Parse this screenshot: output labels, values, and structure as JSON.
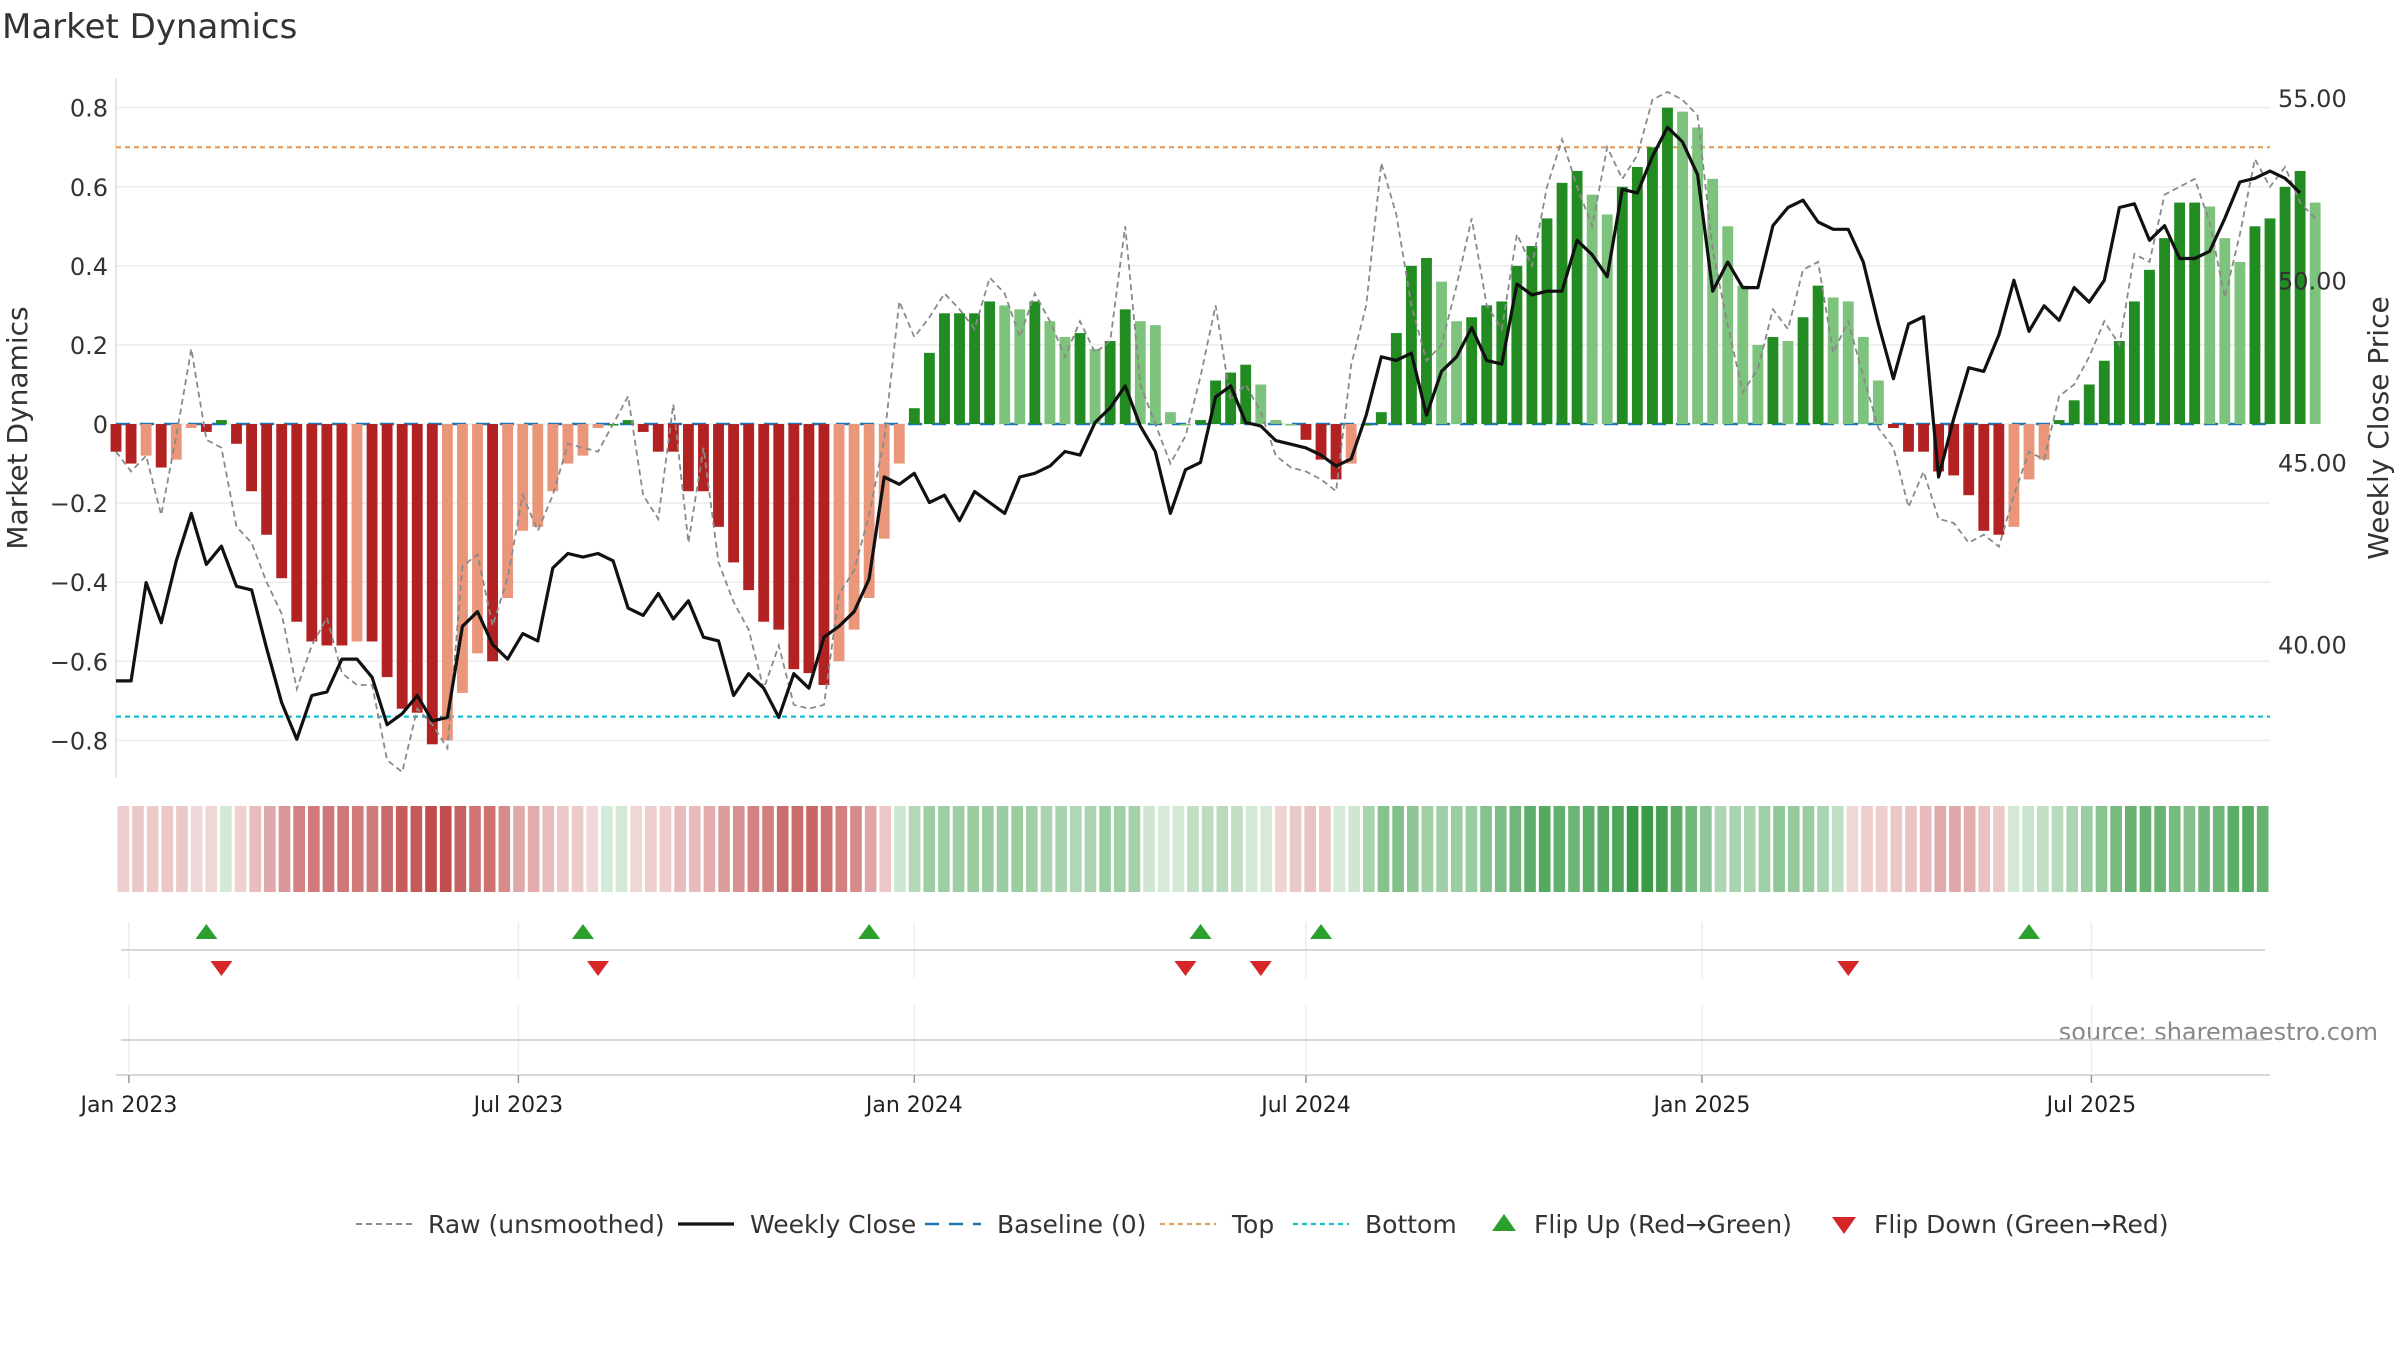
{
  "chart_data": {
    "type": "bar",
    "title": "Market Dynamics",
    "ylabel": "Market Dynamics",
    "y2label": "Weekly Close Price",
    "source_text": "source: sharemaestro.com",
    "ylim": [
      -0.88,
      0.87
    ],
    "y2lim": [
      36.5,
      55.5
    ],
    "y_ticks": [
      0.8,
      0.6,
      0.4,
      0.2,
      0,
      -0.2,
      -0.4,
      -0.6,
      -0.8
    ],
    "y_tick_labels": [
      "0.8",
      "0.6",
      "0.4",
      "0.2",
      "0",
      "−0.2",
      "−0.4",
      "−0.6",
      "−0.8"
    ],
    "y2_ticks": [
      55,
      50,
      45,
      40
    ],
    "y2_tick_labels": [
      "55.00",
      "50.00",
      "45.00",
      "40.00"
    ],
    "x_start": "2022-12-26",
    "x_end": "2025-09-22",
    "x_ticks": [
      "2023-01-01",
      "2023-07-01",
      "2024-01-01",
      "2024-07-01",
      "2025-01-01",
      "2025-07-01"
    ],
    "x_tick_labels": [
      "Jan 2023",
      "Jul 2023",
      "Jan 2024",
      "Jul 2024",
      "Jan 2025",
      "Jul 2025"
    ],
    "top_level": 0.7,
    "bottom_level": -0.74,
    "grid": true,
    "legend_position": "bottom",
    "colors": {
      "red_strong": "#b22222",
      "red_light": "#e9967a",
      "green_strong": "#228b22",
      "green_light": "#7dc27d",
      "raw": "#8a8a8a",
      "close": "#111111",
      "baseline": "#1f77b4",
      "top": "#e0a060",
      "bottom": "#17becf",
      "flip_up": "#2ca02c",
      "flip_down": "#d62728"
    },
    "legend": [
      {
        "key": "raw",
        "label": "Raw (unsmoothed)"
      },
      {
        "key": "close",
        "label": "Weekly Close"
      },
      {
        "key": "baseline",
        "label": "Baseline (0)"
      },
      {
        "key": "top",
        "label": "Top"
      },
      {
        "key": "bottom",
        "label": "Bottom"
      },
      {
        "key": "flip_up",
        "label": "Flip Up (Red→Green)"
      },
      {
        "key": "flip_down",
        "label": "Flip Down (Green→Red)"
      }
    ],
    "dynamics": [
      -0.07,
      -0.1,
      -0.08,
      -0.11,
      -0.09,
      -0.01,
      -0.02,
      0.01,
      -0.05,
      -0.17,
      -0.28,
      -0.39,
      -0.5,
      -0.55,
      -0.56,
      -0.56,
      -0.55,
      -0.55,
      -0.64,
      -0.72,
      -0.73,
      -0.81,
      -0.8,
      -0.68,
      -0.58,
      -0.6,
      -0.44,
      -0.27,
      -0.26,
      -0.17,
      -0.1,
      -0.08,
      -0.01,
      0.0,
      0.01,
      -0.02,
      -0.07,
      -0.07,
      -0.17,
      -0.17,
      -0.26,
      -0.35,
      -0.42,
      -0.5,
      -0.52,
      -0.62,
      -0.63,
      -0.66,
      -0.6,
      -0.52,
      -0.44,
      -0.29,
      -0.1,
      0.04,
      0.18,
      0.28,
      0.28,
      0.28,
      0.31,
      0.3,
      0.29,
      0.31,
      0.26,
      0.22,
      0.23,
      0.19,
      0.21,
      0.29,
      0.26,
      0.25,
      0.03,
      0.0,
      0.01,
      0.11,
      0.13,
      0.15,
      0.1,
      0.01,
      0.0,
      -0.04,
      -0.09,
      -0.14,
      -0.1,
      0.0,
      0.03,
      0.23,
      0.4,
      0.42,
      0.36,
      0.26,
      0.27,
      0.3,
      0.31,
      0.4,
      0.45,
      0.52,
      0.61,
      0.64,
      0.58,
      0.53,
      0.6,
      0.65,
      0.7,
      0.8,
      0.79,
      0.75,
      0.62,
      0.5,
      0.35,
      0.2,
      0.22,
      0.21,
      0.27,
      0.35,
      0.32,
      0.31,
      0.22,
      0.11,
      -0.01,
      -0.07,
      -0.07,
      -0.12,
      -0.13,
      -0.18,
      -0.27,
      -0.28,
      -0.26,
      -0.14,
      -0.09,
      0.01,
      0.06,
      0.1,
      0.16,
      0.21,
      0.31,
      0.39,
      0.47,
      0.56,
      0.56,
      0.55,
      0.47,
      0.41,
      0.5,
      0.52,
      0.6,
      0.64,
      0.56
    ],
    "raw": [
      -0.07,
      -0.12,
      -0.08,
      -0.23,
      -0.03,
      0.19,
      -0.04,
      -0.06,
      -0.26,
      -0.3,
      -0.4,
      -0.48,
      -0.67,
      -0.56,
      -0.49,
      -0.63,
      -0.66,
      -0.66,
      -0.85,
      -0.88,
      -0.72,
      -0.76,
      -0.82,
      -0.36,
      -0.33,
      -0.51,
      -0.39,
      -0.18,
      -0.27,
      -0.18,
      -0.05,
      -0.06,
      -0.07,
      0.0,
      0.07,
      -0.18,
      -0.24,
      0.05,
      -0.3,
      -0.06,
      -0.35,
      -0.45,
      -0.52,
      -0.67,
      -0.56,
      -0.71,
      -0.72,
      -0.71,
      -0.43,
      -0.37,
      -0.23,
      -0.04,
      0.31,
      0.22,
      0.27,
      0.33,
      0.29,
      0.24,
      0.37,
      0.33,
      0.22,
      0.33,
      0.26,
      0.17,
      0.26,
      0.18,
      0.21,
      0.5,
      0.1,
      0.0,
      -0.1,
      -0.03,
      0.12,
      0.3,
      0.06,
      0.1,
      0.03,
      -0.08,
      -0.11,
      -0.12,
      -0.14,
      -0.17,
      0.15,
      0.3,
      0.66,
      0.53,
      0.3,
      0.16,
      0.2,
      0.35,
      0.52,
      0.3,
      0.24,
      0.48,
      0.4,
      0.6,
      0.72,
      0.6,
      0.5,
      0.7,
      0.62,
      0.68,
      0.82,
      0.84,
      0.82,
      0.78,
      0.44,
      0.25,
      0.08,
      0.14,
      0.29,
      0.24,
      0.39,
      0.41,
      0.18,
      0.26,
      0.12,
      -0.01,
      -0.06,
      -0.21,
      -0.12,
      -0.24,
      -0.25,
      -0.3,
      -0.28,
      -0.31,
      -0.18,
      -0.07,
      -0.09,
      0.07,
      0.1,
      0.17,
      0.26,
      0.2,
      0.43,
      0.41,
      0.58,
      0.6,
      0.62,
      0.51,
      0.32,
      0.48,
      0.67,
      0.6,
      0.65,
      0.56,
      0.52
    ],
    "close": [
      39.0,
      39.0,
      41.7,
      40.6,
      42.3,
      43.6,
      42.2,
      42.7,
      41.6,
      41.5,
      39.9,
      38.4,
      37.4,
      38.6,
      38.7,
      39.6,
      39.6,
      39.1,
      37.8,
      38.1,
      38.6,
      37.9,
      38.0,
      40.5,
      40.9,
      40.0,
      39.6,
      40.3,
      40.1,
      42.1,
      42.5,
      42.4,
      42.5,
      42.3,
      41.0,
      40.8,
      41.4,
      40.7,
      41.2,
      40.2,
      40.1,
      38.6,
      39.2,
      38.8,
      38.0,
      39.2,
      38.8,
      40.2,
      40.5,
      40.9,
      41.8,
      44.6,
      44.4,
      44.7,
      43.9,
      44.1,
      43.4,
      44.2,
      43.9,
      43.6,
      44.6,
      44.7,
      44.9,
      45.3,
      45.2,
      46.1,
      46.5,
      47.1,
      46.0,
      45.3,
      43.6,
      44.8,
      45.0,
      46.8,
      47.1,
      46.1,
      46.0,
      45.6,
      45.5,
      45.4,
      45.2,
      44.9,
      45.1,
      46.3,
      47.9,
      47.8,
      48.0,
      46.3,
      47.5,
      47.9,
      48.7,
      47.8,
      47.7,
      49.9,
      49.6,
      49.7,
      49.7,
      51.1,
      50.7,
      50.1,
      52.5,
      52.4,
      53.4,
      54.2,
      53.8,
      52.9,
      49.7,
      50.5,
      49.8,
      49.8,
      51.5,
      52.0,
      52.2,
      51.6,
      51.4,
      51.4,
      50.5,
      48.8,
      47.3,
      48.8,
      49.0,
      44.6,
      46.2,
      47.6,
      47.5,
      48.5,
      50.0,
      48.6,
      49.3,
      48.9,
      49.8,
      49.4,
      50.0,
      52.0,
      52.1,
      51.1,
      51.5,
      50.6,
      50.6,
      50.8,
      51.7,
      52.7,
      52.8,
      53.0,
      52.8,
      52.4
    ],
    "flip_up": [
      "2023-02-06",
      "2023-07-31",
      "2023-12-11",
      "2024-05-13",
      "2024-07-08",
      "2025-06-02"
    ],
    "flip_down": [
      "2023-02-13",
      "2023-08-07",
      "2024-05-06",
      "2024-06-10",
      "2025-03-10"
    ]
  }
}
